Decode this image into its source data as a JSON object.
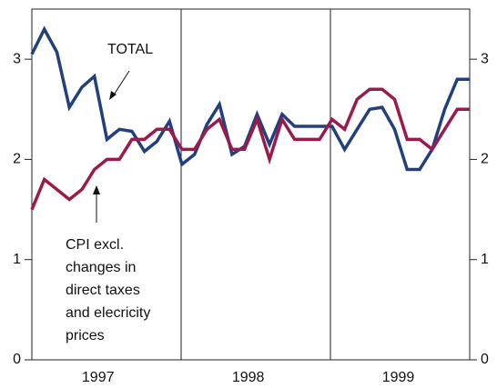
{
  "chart_data": {
    "type": "line",
    "categories": [
      null,
      null,
      null,
      null,
      null,
      "1997",
      null,
      null,
      null,
      null,
      null,
      null,
      null,
      null,
      null,
      null,
      null,
      "1998",
      null,
      null,
      null,
      null,
      null,
      null,
      null,
      null,
      null,
      null,
      null,
      "1999",
      null,
      null,
      null,
      null,
      null,
      null
    ],
    "series": [
      {
        "color": "#22407e",
        "values": [
          3.05,
          3.3,
          3.07,
          2.52,
          2.72,
          2.83,
          2.2,
          2.3,
          2.28,
          2.08,
          2.18,
          2.38,
          1.95,
          2.05,
          2.35,
          2.55,
          2.05,
          2.13,
          2.45,
          2.15,
          2.45,
          2.33,
          2.33,
          2.33,
          2.33,
          2.1,
          2.3,
          2.5,
          2.52,
          2.3,
          1.9,
          1.9,
          2.1,
          2.5,
          2.8,
          2.8
        ]
      },
      {
        "color": "#9a1a4c",
        "values": [
          1.5,
          1.8,
          1.7,
          1.6,
          1.7,
          1.9,
          2.0,
          2.0,
          2.2,
          2.2,
          2.3,
          2.3,
          2.1,
          2.1,
          2.3,
          2.4,
          2.1,
          2.1,
          2.4,
          2.0,
          2.4,
          2.2,
          2.2,
          2.2,
          2.4,
          2.3,
          2.6,
          2.7,
          2.7,
          2.6,
          2.2,
          2.2,
          2.1,
          2.3,
          2.5,
          2.5
        ]
      }
    ],
    "annotations": [
      {
        "lines": [
          "TOTAL"
        ]
      },
      {
        "lines": [
          "CPI excl.",
          "changes in",
          "direct taxes",
          "and elecricity",
          "prices"
        ]
      }
    ],
    "ylim": [
      0,
      3.5
    ],
    "yticks": [
      0,
      1,
      2,
      3
    ],
    "y2lim": [
      0,
      3.5
    ],
    "y2ticks": [
      0,
      1,
      2,
      3
    ]
  }
}
